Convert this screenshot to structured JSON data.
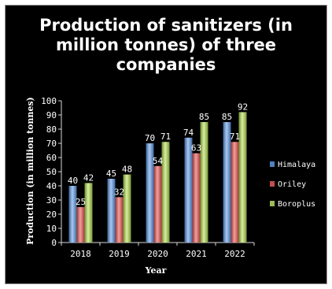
{
  "chart_data": {
    "type": "bar",
    "title_lines": [
      "Production of sanitizers (in",
      "million tonnes) of three",
      "companies"
    ],
    "xlabel": "Year",
    "ylabel": "Production (in million tonnes)",
    "ylim": [
      0,
      100
    ],
    "yticks": [
      "0",
      "10",
      "20",
      "30",
      "40",
      "50",
      "60",
      "70",
      "80",
      "90",
      "100"
    ],
    "categories": [
      "2018",
      "2019",
      "2020",
      "2021",
      "2022"
    ],
    "series": [
      {
        "name": "Himalaya",
        "values": [
          40,
          45,
          70,
          74,
          85
        ],
        "labels": [
          "40",
          "45",
          "70",
          "74",
          "85"
        ]
      },
      {
        "name": "Oriley",
        "values": [
          25,
          32,
          54,
          63,
          71
        ],
        "labels": [
          "25",
          "32",
          "54",
          "63",
          "71"
        ]
      },
      {
        "name": "Boroplus",
        "values": [
          42,
          48,
          71,
          85,
          92
        ],
        "labels": [
          "42",
          "48",
          "71",
          "85",
          "92"
        ]
      }
    ],
    "legend_position": "right",
    "grid": false,
    "colors": [
      "#4f81bd",
      "#c0504d",
      "#9bbb59"
    ]
  }
}
